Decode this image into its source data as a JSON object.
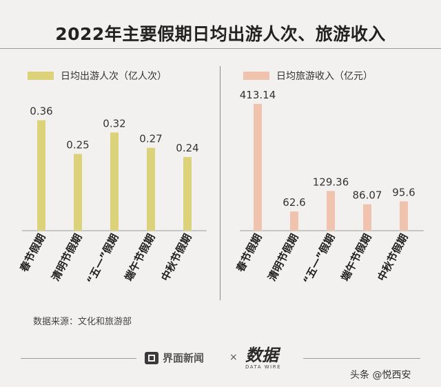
{
  "title": "2022年主要假期日均出游人次、旅游收入",
  "source": "数据来源：文化和旅游部",
  "brand": {
    "outlet": "界面新闻",
    "times": "×",
    "partner_logo_text": "数据",
    "partner_subtitle": "DATA WIRE"
  },
  "footer_tag": "头条 @悦西安",
  "colors": {
    "left_bar": "#dcd27a",
    "left_legend": "#dcd27a",
    "right_bar": "#efc3ae",
    "right_legend": "#efc3ae",
    "background": "#f2f1ef"
  },
  "chart_data": [
    {
      "type": "bar",
      "legend": "日均出游人次（亿人次）",
      "categories": [
        "春节假期",
        "清明节假期",
        "“五一”假期",
        "端午节假期",
        "中秋节假期"
      ],
      "values": [
        0.36,
        0.25,
        0.32,
        0.27,
        0.24
      ],
      "value_labels": [
        "0.36",
        "0.25",
        "0.32",
        "0.27",
        "0.24"
      ],
      "ylim": [
        0,
        0.46
      ],
      "grid": false
    },
    {
      "type": "bar",
      "legend": "日均旅游收入（亿元）",
      "categories": [
        "春节假期",
        "清明节假期",
        "“五一”假期",
        "端午节假期",
        "中秋节假期"
      ],
      "values": [
        413.14,
        62.6,
        129.36,
        86.07,
        95.6
      ],
      "value_labels": [
        "413.14",
        "62.6",
        "129.36",
        "86.07",
        "95.6"
      ],
      "ylim": [
        0,
        460
      ],
      "grid": false
    }
  ]
}
